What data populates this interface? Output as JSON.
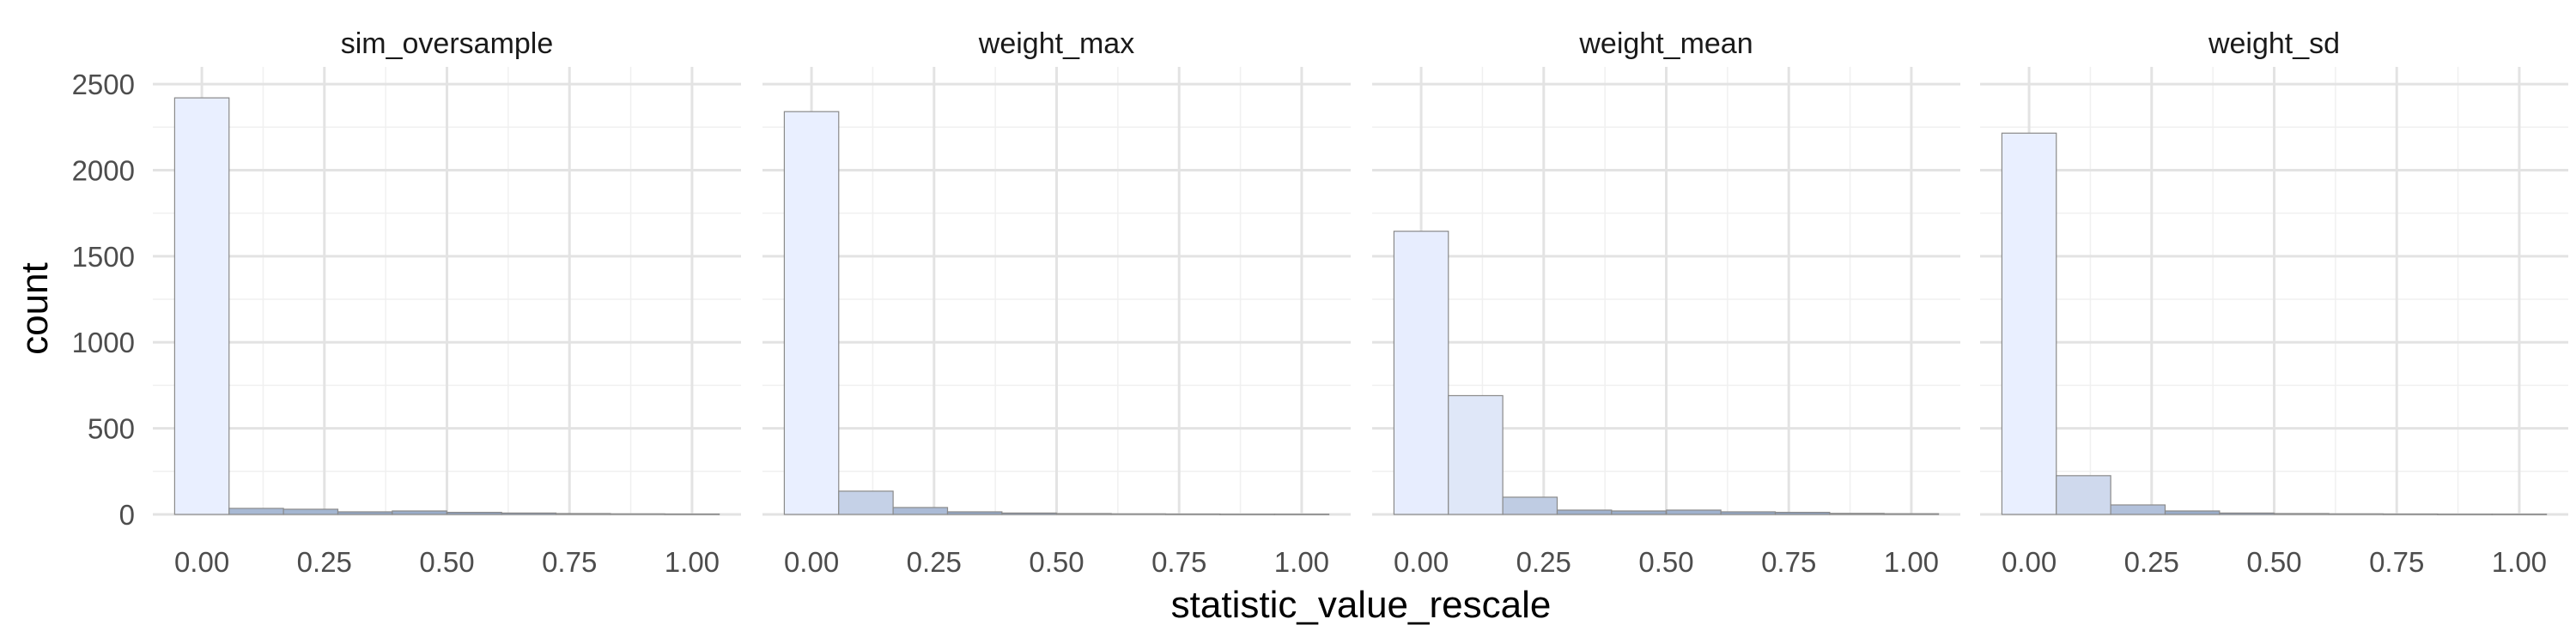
{
  "chart_data": {
    "type": "bar",
    "subtype": "faceted histogram",
    "xlabel": "statistic_value_rescale",
    "ylabel": "count",
    "xlim": [
      -0.1,
      1.1
    ],
    "ylim": [
      0,
      2600
    ],
    "x_ticks": [
      "0.00",
      "0.25",
      "0.50",
      "0.75",
      "1.00"
    ],
    "x_tick_values": [
      0,
      0.25,
      0.5,
      0.75,
      1
    ],
    "y_ticks": [
      "0",
      "500",
      "1000",
      "1500",
      "2000",
      "2500"
    ],
    "y_tick_values": [
      0,
      500,
      1000,
      1500,
      2000,
      2500
    ],
    "bin_centers": [
      0.0,
      0.111,
      0.222,
      0.333,
      0.444,
      0.556,
      0.667,
      0.778,
      0.889,
      1.0
    ],
    "bin_width": 0.111,
    "grid": true,
    "fill_light": "#e9efff",
    "fill_dark": "#3d5f8c",
    "bar_outline": "#8a8a8a",
    "facets": [
      {
        "title": "sim_oversample",
        "values": [
          2420,
          35,
          30,
          15,
          20,
          12,
          8,
          5,
          3,
          2
        ]
      },
      {
        "title": "weight_max",
        "values": [
          2340,
          135,
          40,
          15,
          8,
          5,
          3,
          2,
          1,
          1
        ]
      },
      {
        "title": "weight_mean",
        "values": [
          1645,
          690,
          100,
          25,
          20,
          25,
          15,
          12,
          6,
          4
        ]
      },
      {
        "title": "weight_sd",
        "values": [
          2215,
          225,
          55,
          20,
          8,
          5,
          3,
          2,
          1,
          1
        ]
      }
    ]
  }
}
